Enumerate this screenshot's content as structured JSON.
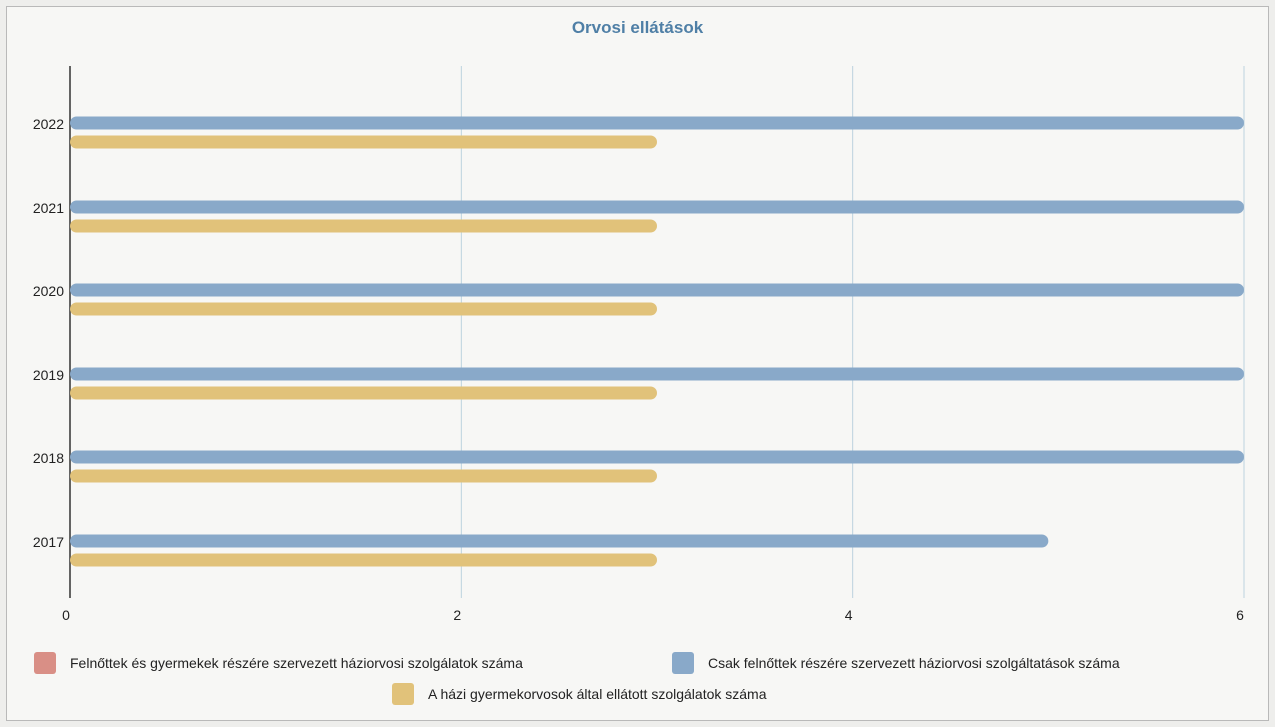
{
  "chart_data": {
    "type": "bar",
    "orientation": "horizontal",
    "title": "Orvosi ellátások",
    "categories": [
      "2022",
      "2021",
      "2020",
      "2019",
      "2018",
      "2017"
    ],
    "series": [
      {
        "name": "Felnőttek és gyermekek részére szervezett háziorvosi szolgálatok száma",
        "color": "#d98f86",
        "values": [
          0,
          0,
          0,
          0,
          0,
          0
        ]
      },
      {
        "name": "Csak felnőttek részére szervezett háziorvosi szolgáltatások száma",
        "color": "#89a9c9",
        "values": [
          6,
          6,
          6,
          6,
          6,
          5
        ]
      },
      {
        "name": "A házi gyermekorvosok által ellátott szolgálatok száma",
        "color": "#e1c27a",
        "values": [
          3,
          3,
          3,
          3,
          3,
          3
        ]
      }
    ],
    "xlim": [
      0,
      6
    ],
    "xticks": [
      "0",
      "2",
      "4",
      "6"
    ],
    "grid": true,
    "legend_position": "bottom"
  }
}
